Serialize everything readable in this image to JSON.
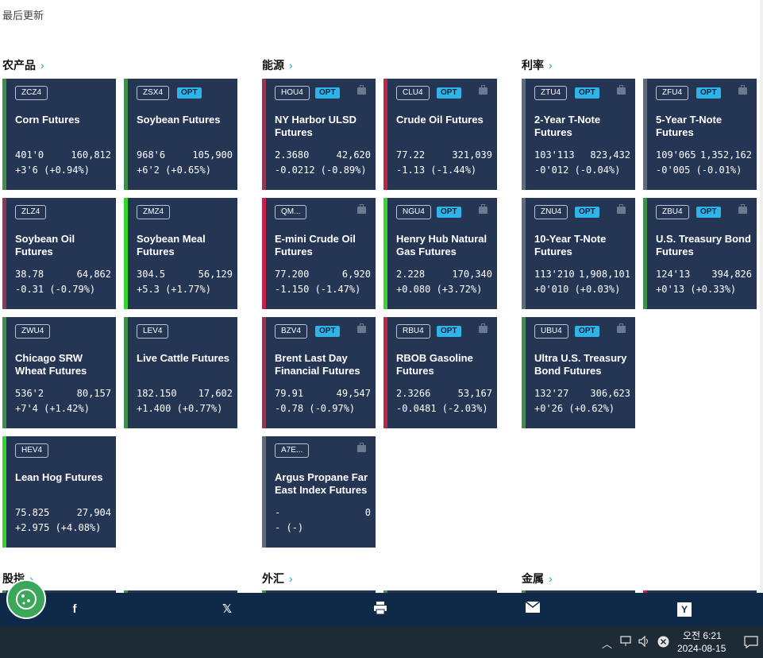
{
  "last_updated_label": "最后更新",
  "sections": [
    {
      "title": "农产品",
      "chevron": "›"
    },
    {
      "title": "能源",
      "chevron": "›"
    },
    {
      "title": "利率",
      "chevron": "›"
    },
    {
      "title": "股指",
      "chevron": "›"
    },
    {
      "title": "外汇",
      "chevron": "›"
    },
    {
      "title": "金属",
      "chevron": "›"
    }
  ],
  "colors": {
    "card_bg": "#253654",
    "up_green": "#3f8f4a",
    "bright_green": "#33d62a",
    "down_red": "#c4224a",
    "maroon": "#8a3a52",
    "neutral_grey": "#5f6b7a",
    "opt_blue": "#2fb4e8",
    "share_bar": "#0f2a48",
    "taskbar": "#1e2a36"
  },
  "cards": [
    {
      "ticker": "ZCZ4",
      "opt": "",
      "name": "Corn Futures",
      "price": "401'0",
      "volume": "160,812",
      "change": "+3'6 (+0.94%)",
      "bar": "#3f8f4a"
    },
    {
      "ticker": "ZSX4",
      "opt": "OPT",
      "name": "Soybean Futures",
      "price": "968'6",
      "volume": "105,900",
      "change": "+6'2 (+0.65%)",
      "bar": "#3f8f4a"
    },
    {
      "ticker": "HOU4",
      "opt": "OPT",
      "name": "NY Harbor ULSD Futures",
      "price": "2.3680",
      "volume": "42,620",
      "change": "-0.0212 (-0.89%)",
      "bar": "#8a3a52"
    },
    {
      "ticker": "CLU4",
      "opt": "OPT",
      "name": "Crude Oil Futures",
      "price": "77.22",
      "volume": "321,039",
      "change": "-1.13 (-1.44%)",
      "bar": "#c4224a"
    },
    {
      "ticker": "ZTU4",
      "opt": "OPT",
      "name": "2-Year T-Note Futures",
      "price": "103'113",
      "volume": "823,432",
      "change": "-0'012 (-0.04%)",
      "bar": "#5f6b7a"
    },
    {
      "ticker": "ZFU4",
      "opt": "OPT",
      "name": "5-Year T-Note Futures",
      "price": "109'065",
      "volume": "1,352,162",
      "change": "-0'005 (-0.01%)",
      "bar": "#5f6b7a"
    },
    {
      "ticker": "ZLZ4",
      "opt": "",
      "name": "Soybean Oil Futures",
      "price": "38.78",
      "volume": "64,862",
      "change": "-0.31 (-0.79%)",
      "bar": "#8a3a52"
    },
    {
      "ticker": "ZMZ4",
      "opt": "",
      "name": "Soybean Meal Futures",
      "price": "304.5",
      "volume": "56,129",
      "change": "+5.3 (+1.77%)",
      "bar": "#33d62a"
    },
    {
      "ticker": "QM...",
      "opt": "",
      "name": "E-mini Crude Oil Futures",
      "price": "77.200",
      "volume": "6,920",
      "change": "-1.150 (-1.47%)",
      "bar": "#c4224a"
    },
    {
      "ticker": "NGU4",
      "opt": "OPT",
      "name": "Henry Hub Natural Gas Futures",
      "price": "2.228",
      "volume": "170,340",
      "change": "+0.080 (+3.72%)",
      "bar": "#33d62a"
    },
    {
      "ticker": "ZNU4",
      "opt": "OPT",
      "name": "10-Year T-Note Futures",
      "price": "113'210",
      "volume": "1,908,101",
      "change": "+0'010 (+0.03%)",
      "bar": "#5f6b7a"
    },
    {
      "ticker": "ZBU4",
      "opt": "OPT",
      "name": "U.S. Treasury Bond Futures",
      "price": "124'13",
      "volume": "394,826",
      "change": "+0'13 (+0.33%)",
      "bar": "#3f8f4a"
    },
    {
      "ticker": "ZWU4",
      "opt": "",
      "name": "Chicago SRW Wheat Futures",
      "price": "536'2",
      "volume": "80,157",
      "change": "+7'4 (+1.42%)",
      "bar": "#3f8f4a"
    },
    {
      "ticker": "LEV4",
      "opt": "",
      "name": "Live Cattle Futures",
      "price": "182.150",
      "volume": "17,602",
      "change": "+1.400 (+0.77%)",
      "bar": "#3f8f4a"
    },
    {
      "ticker": "BZV4",
      "opt": "OPT",
      "name": "Brent Last Day Financial Futures",
      "price": "79.91",
      "volume": "49,547",
      "change": "-0.78 (-0.97%)",
      "bar": "#8a3a52"
    },
    {
      "ticker": "RBU4",
      "opt": "OPT",
      "name": "RBOB Gasoline Futures",
      "price": "2.3266",
      "volume": "53,167",
      "change": "-0.0481 (-2.03%)",
      "bar": "#c4224a"
    },
    {
      "ticker": "UBU4",
      "opt": "OPT",
      "name": "Ultra U.S. Treasury Bond Futures",
      "price": "132'27",
      "volume": "306,623",
      "change": "+0'26 (+0.62%)",
      "bar": "#3f8f4a"
    },
    {
      "ticker": "HEV4",
      "opt": "",
      "name": "Lean Hog Futures",
      "price": "75.825",
      "volume": "27,904",
      "change": "+2.975 (+4.08%)",
      "bar": "#33d62a"
    },
    {
      "ticker": "A7E...",
      "opt": "",
      "name": "Argus Propane Far East Index Futures",
      "price": "-",
      "volume": "0",
      "change": "- (-)",
      "bar": "#5f6b7a"
    }
  ],
  "share": {
    "facebook": "f",
    "x": "𝕏",
    "print": "print",
    "email": "email",
    "yahoo": "Y"
  },
  "taskbar": {
    "time": "오전 6:21",
    "date": "2024-08-15"
  }
}
